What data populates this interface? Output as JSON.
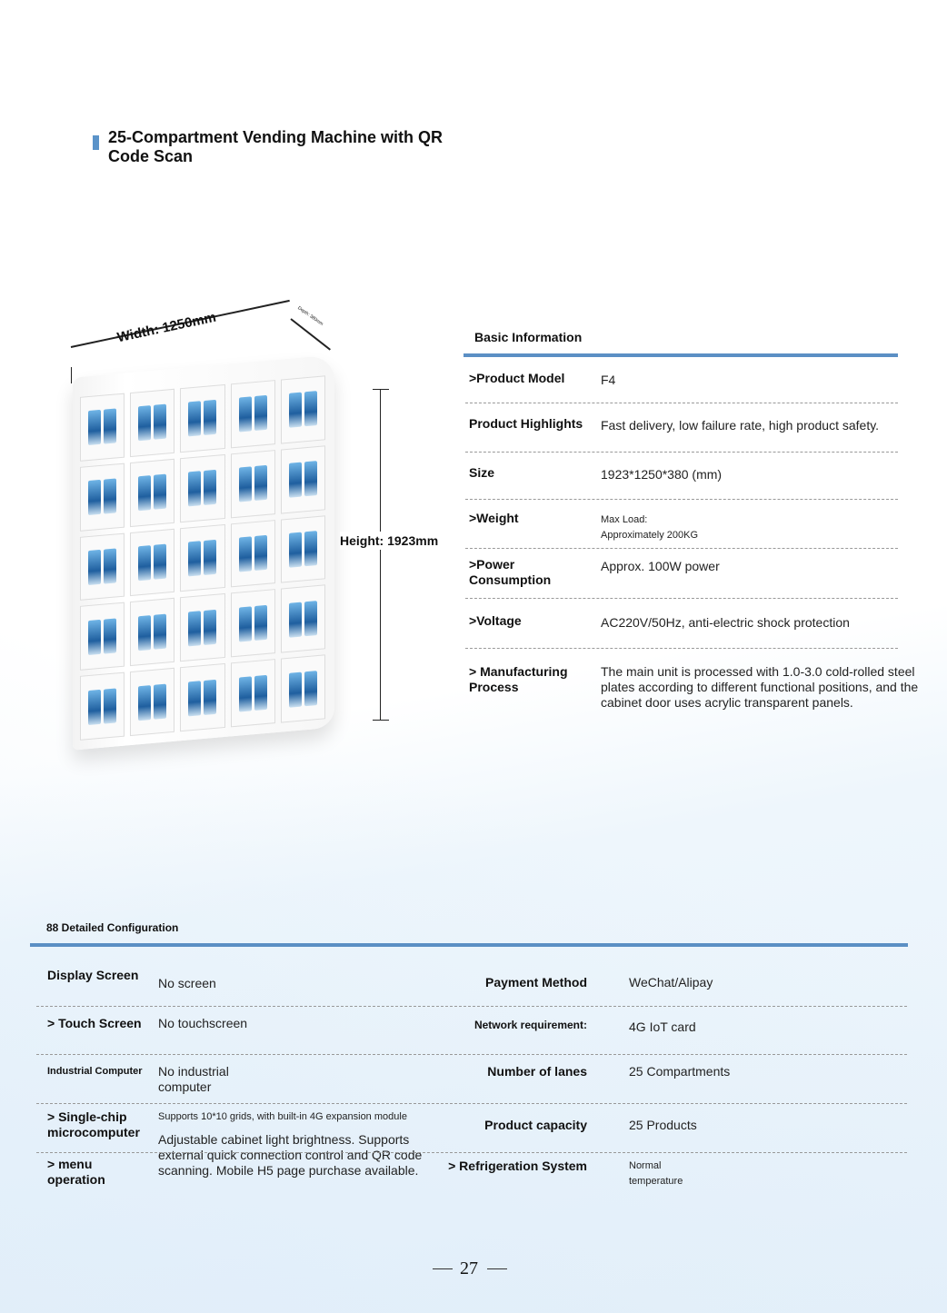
{
  "title": "25-Compartment Vending Machine with QR Code Scan",
  "dimensions": {
    "width": "Width: 1250mm",
    "depth": "Depth: 380mm",
    "height": "Height: 1923mm"
  },
  "basic": {
    "heading": "Basic Information",
    "rows": [
      {
        "label": ">Product Model",
        "value": "F4"
      },
      {
        "label": "Product Highlights",
        "value": "Fast delivery, low failure rate, high product safety."
      },
      {
        "label": "Size",
        "value": "1923*1250*380 (mm)"
      },
      {
        "label": ">Weight",
        "value": "Max Load: Approximately 200KG"
      },
      {
        "label": ">Power Consumption",
        "value": "Approx. 100W power"
      },
      {
        "label": ">Voltage",
        "value": "AC220V/50Hz, anti-electric shock protection"
      },
      {
        "label": "> Manufacturing Process",
        "value": "The main unit is processed with 1.0-3.0 cold-rolled steel plates according to different functional positions, and the cabinet door uses acrylic transparent panels."
      }
    ]
  },
  "config": {
    "heading": "88 Detailed Configuration",
    "left": [
      {
        "label": "Display Screen",
        "value": "No screen"
      },
      {
        "label": "> Touch Screen",
        "value": "No touchscreen"
      },
      {
        "label": "Industrial Computer",
        "value": "No industrial computer"
      },
      {
        "label": "> Single-chip microcomputer",
        "value": "Supports 10*10 grids, with built-in 4G expansion module"
      },
      {
        "label": "> menu operation",
        "value": "Adjustable cabinet light brightness. Supports external quick connection control and QR code scanning. Mobile H5 page purchase available."
      }
    ],
    "right": [
      {
        "label": "Payment Method",
        "value": "WeChat/Alipay"
      },
      {
        "label": "Network requirement:",
        "value": "4G IoT card"
      },
      {
        "label": "Number of lanes",
        "value": "25 Compartments"
      },
      {
        "label": "Product capacity",
        "value": "25 Products"
      },
      {
        "label": "> Refrigeration System",
        "value": "Normal temperature"
      }
    ]
  },
  "page_number": "27",
  "colors": {
    "accent": "#5b8fc4"
  }
}
